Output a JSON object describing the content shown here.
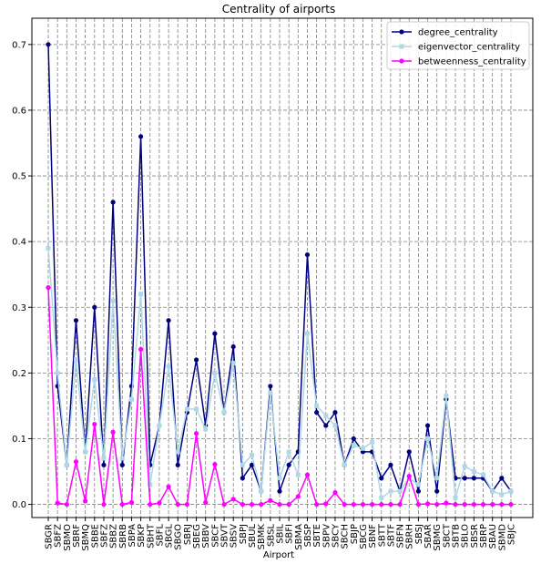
{
  "chart_data": {
    "type": "line",
    "title": "Centrality of airports",
    "xlabel": "Airport",
    "ylabel": "",
    "ylim": [
      -0.02,
      0.74
    ],
    "yticks": [
      0.0,
      0.1,
      0.2,
      0.3,
      0.4,
      0.5,
      0.6,
      0.7
    ],
    "grid": true,
    "legend_position": "top-right",
    "categories": [
      "SBGR",
      "SBFZ",
      "SBMO",
      "SBRF",
      "SBMQ",
      "SBBE",
      "SBFZ",
      "SBBZ",
      "SBRB",
      "SBPA",
      "SBKP",
      "SBHT",
      "SBFL",
      "SBGL",
      "SBGO",
      "SBRJ",
      "SBEG",
      "SBBV",
      "SBCF",
      "SBVT",
      "SBSV",
      "SBPJ",
      "SBUL",
      "SBMK",
      "SBSL",
      "SBIL",
      "SBFI",
      "SBMA",
      "SBSP",
      "SBTE",
      "SBPV",
      "SBCY",
      "SBCH",
      "SBJP",
      "SBCG",
      "SBNF",
      "SBTT",
      "SBTF",
      "SBFN",
      "SBRH",
      "SBSJ",
      "SBAR",
      "SBMG",
      "SBCT",
      "SBTB",
      "SBLO",
      "SBSR",
      "SBRP",
      "SBAU",
      "SBMD",
      "SBJC"
    ],
    "series": [
      {
        "name": "degree_centrality",
        "color": "#00007f",
        "marker": "circle",
        "values": [
          0.7,
          0.18,
          0.06,
          0.28,
          0.08,
          0.3,
          0.06,
          0.46,
          0.06,
          0.18,
          0.56,
          0.06,
          0.12,
          0.28,
          0.06,
          0.14,
          0.22,
          0.12,
          0.26,
          0.14,
          0.24,
          0.04,
          0.06,
          0.02,
          0.18,
          0.02,
          0.06,
          0.08,
          0.38,
          0.14,
          0.12,
          0.14,
          0.06,
          0.1,
          0.08,
          0.08,
          0.04,
          0.06,
          0.02,
          0.08,
          0.02,
          0.12,
          0.02,
          0.16,
          0.04,
          0.04,
          0.04,
          0.04,
          0.02,
          0.04,
          0.02
        ]
      },
      {
        "name": "eigenvector_centrality",
        "color": "#add8e6",
        "marker": "square",
        "values": [
          0.39,
          0.2,
          0.06,
          0.22,
          0.08,
          0.19,
          0.07,
          0.31,
          0.07,
          0.16,
          0.32,
          0.03,
          0.12,
          0.21,
          0.08,
          0.145,
          0.145,
          0.115,
          0.2,
          0.14,
          0.215,
          0.06,
          0.075,
          0.02,
          0.17,
          0.04,
          0.08,
          0.045,
          0.26,
          0.15,
          0.135,
          0.12,
          0.06,
          0.09,
          0.085,
          0.095,
          0.01,
          0.02,
          0.02,
          0.04,
          0.03,
          0.1,
          0.04,
          0.165,
          0.01,
          0.058,
          0.05,
          0.045,
          0.02,
          0.015,
          0.02
        ]
      },
      {
        "name": "betweenness_centrality",
        "color": "#ff00ff",
        "marker": "circle",
        "values": [
          0.33,
          0.002,
          0.0,
          0.065,
          0.005,
          0.122,
          0.0,
          0.11,
          0.0,
          0.003,
          0.236,
          0.0,
          0.002,
          0.027,
          0.0,
          0.0,
          0.108,
          0.003,
          0.061,
          0.0,
          0.008,
          0.0,
          0.0,
          0.0,
          0.006,
          0.0,
          0.0,
          0.012,
          0.045,
          0.0,
          0.001,
          0.018,
          0.0,
          0.0,
          0.0,
          0.0,
          0.0,
          0.0,
          0.0,
          0.043,
          0.0,
          0.001,
          0.0,
          0.002,
          0.0,
          0.0,
          0.0,
          0.0,
          0.0,
          0.0,
          0.0
        ]
      }
    ]
  }
}
